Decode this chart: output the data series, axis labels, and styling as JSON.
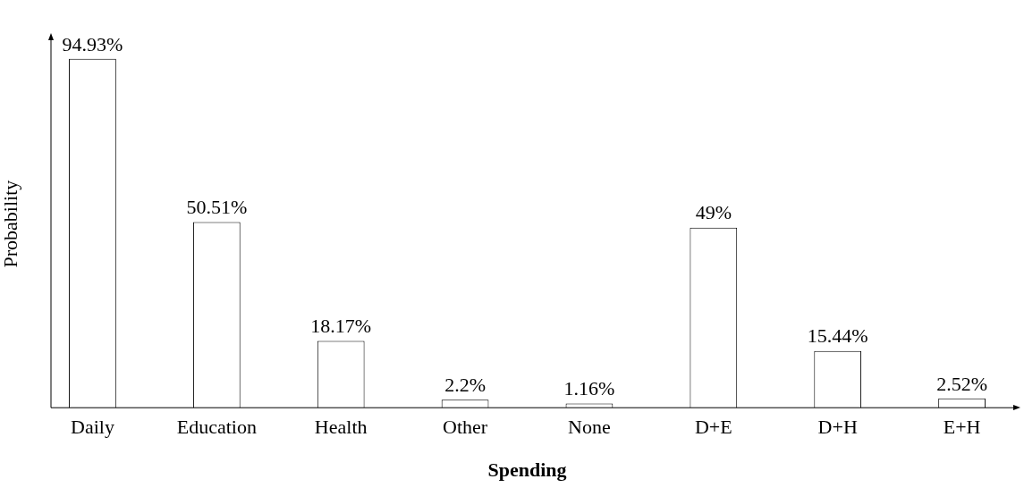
{
  "chart_data": {
    "type": "bar",
    "xlabel": "Spending",
    "ylabel": "Probability",
    "categories": [
      "Daily",
      "Education",
      "Health",
      "Other",
      "None",
      "D+E",
      "D+H",
      "E+H"
    ],
    "values": [
      94.93,
      50.51,
      18.17,
      2.2,
      1.16,
      49,
      15.44,
      2.52
    ],
    "value_labels": [
      "94.93%",
      "50.51%",
      "18.17%",
      "2.2%",
      "1.16%",
      "49%",
      "15.44%",
      "2.52%"
    ],
    "color": "#ffffff",
    "grid": false,
    "legend": false
  }
}
